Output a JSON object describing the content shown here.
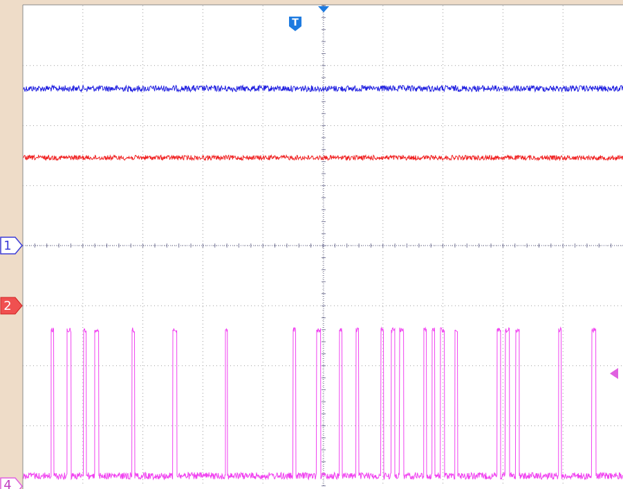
{
  "trigger": {
    "label": "T"
  },
  "markers": [
    {
      "label": "1"
    },
    {
      "label": "2"
    },
    {
      "label": "4"
    }
  ]
}
